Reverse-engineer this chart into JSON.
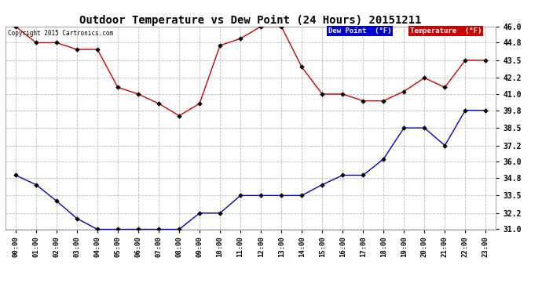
{
  "title": "Outdoor Temperature vs Dew Point (24 Hours) 20151211",
  "copyright": "Copyright 2015 Cartronics.com",
  "x_labels": [
    "00:00",
    "01:00",
    "02:00",
    "03:00",
    "04:00",
    "05:00",
    "06:00",
    "07:00",
    "08:00",
    "09:00",
    "10:00",
    "11:00",
    "12:00",
    "13:00",
    "14:00",
    "15:00",
    "16:00",
    "17:00",
    "18:00",
    "19:00",
    "20:00",
    "21:00",
    "22:00",
    "23:00"
  ],
  "temperature": [
    46.0,
    44.8,
    44.8,
    44.3,
    44.3,
    41.5,
    41.0,
    40.3,
    39.4,
    40.3,
    44.6,
    45.1,
    46.0,
    46.0,
    43.0,
    41.0,
    41.0,
    40.5,
    40.5,
    41.2,
    42.2,
    41.5,
    43.5,
    43.5
  ],
  "dew_point": [
    35.0,
    34.3,
    33.1,
    31.8,
    31.0,
    31.0,
    31.0,
    31.0,
    31.0,
    32.2,
    32.2,
    33.5,
    33.5,
    33.5,
    33.5,
    34.3,
    35.0,
    35.0,
    36.2,
    38.5,
    38.5,
    37.2,
    39.8,
    39.8
  ],
  "temp_color": "#cc0000",
  "dew_color": "#0000cc",
  "ylim_min": 31.0,
  "ylim_max": 46.0,
  "yticks": [
    31.0,
    32.2,
    33.5,
    34.8,
    36.0,
    37.2,
    38.5,
    39.8,
    41.0,
    42.2,
    43.5,
    44.8,
    46.0
  ],
  "bg_color": "#ffffff",
  "grid_color": "#bbbbbb",
  "legend_dew_bg": "#0000cc",
  "legend_temp_bg": "#cc0000",
  "legend_dew_text": "Dew Point  (°F)",
  "legend_temp_text": "Temperature  (°F)"
}
